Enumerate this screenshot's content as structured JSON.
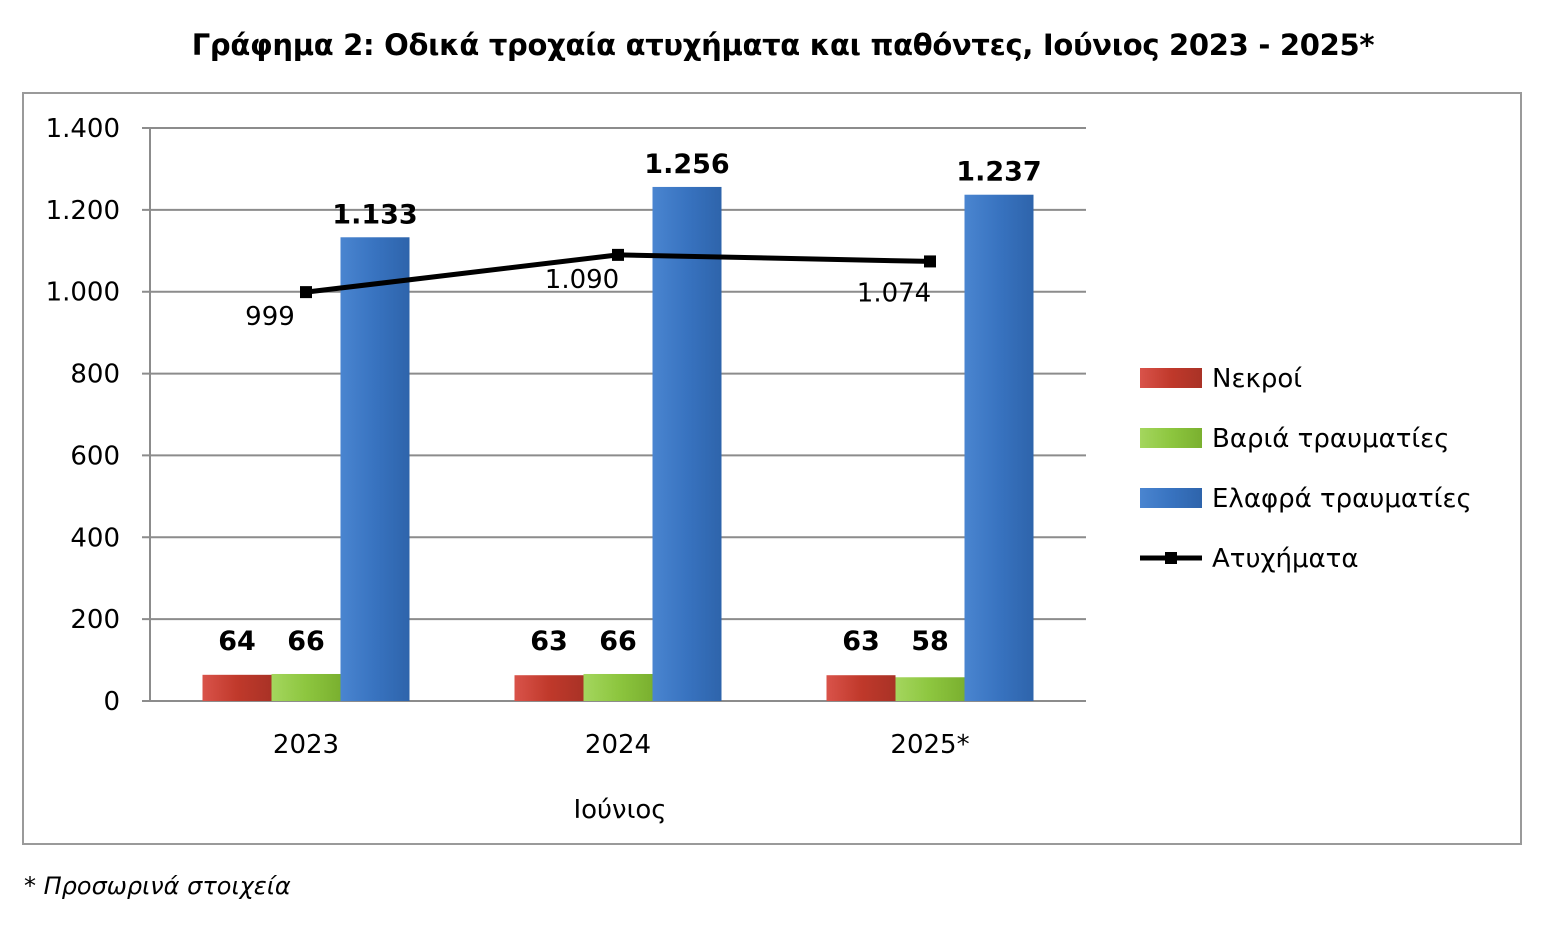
{
  "title": "Γράφημα 2: Οδικά τροχαία ατυχήματα και παθόντες, Ιούνιος 2023 - 2025*",
  "footnote": "* Προσωρινά στοιχεία",
  "chart_data": {
    "type": "bar",
    "title": "Γράφημα 2: Οδικά τροχαία ατυχήματα και παθόντες, Ιούνιος 2023 - 2025*",
    "xlabel": "Ιούνιος",
    "ylabel": "",
    "categories": [
      "2023",
      "2024",
      "2025*"
    ],
    "ylim": [
      0,
      1400
    ],
    "yticks": [
      0,
      200,
      400,
      600,
      800,
      1000,
      1200,
      1400
    ],
    "ytick_labels": [
      "0",
      "200",
      "400",
      "600",
      "800",
      "1.000",
      "1.200",
      "1.400"
    ],
    "grid": true,
    "legend_position": "right",
    "series": [
      {
        "name": "Νεκροί",
        "kind": "bar",
        "color": "#c0392b",
        "values": [
          64,
          63,
          63
        ],
        "labels": [
          "64",
          "63",
          "63"
        ]
      },
      {
        "name": "Βαριά τραυματίες",
        "kind": "bar",
        "color": "#8dc63f",
        "values": [
          66,
          66,
          58
        ],
        "labels": [
          "66",
          "66",
          "58"
        ]
      },
      {
        "name": "Ελαφρά τραυματίες",
        "kind": "bar",
        "color": "#3873c0",
        "values": [
          1133,
          1256,
          1237
        ],
        "labels": [
          "1.133",
          "1.256",
          "1.237"
        ]
      },
      {
        "name": "Ατυχήματα",
        "kind": "line",
        "color": "#000000",
        "values": [
          999,
          1090,
          1074
        ],
        "labels": [
          "999",
          "1.090",
          "1.074"
        ]
      }
    ]
  }
}
